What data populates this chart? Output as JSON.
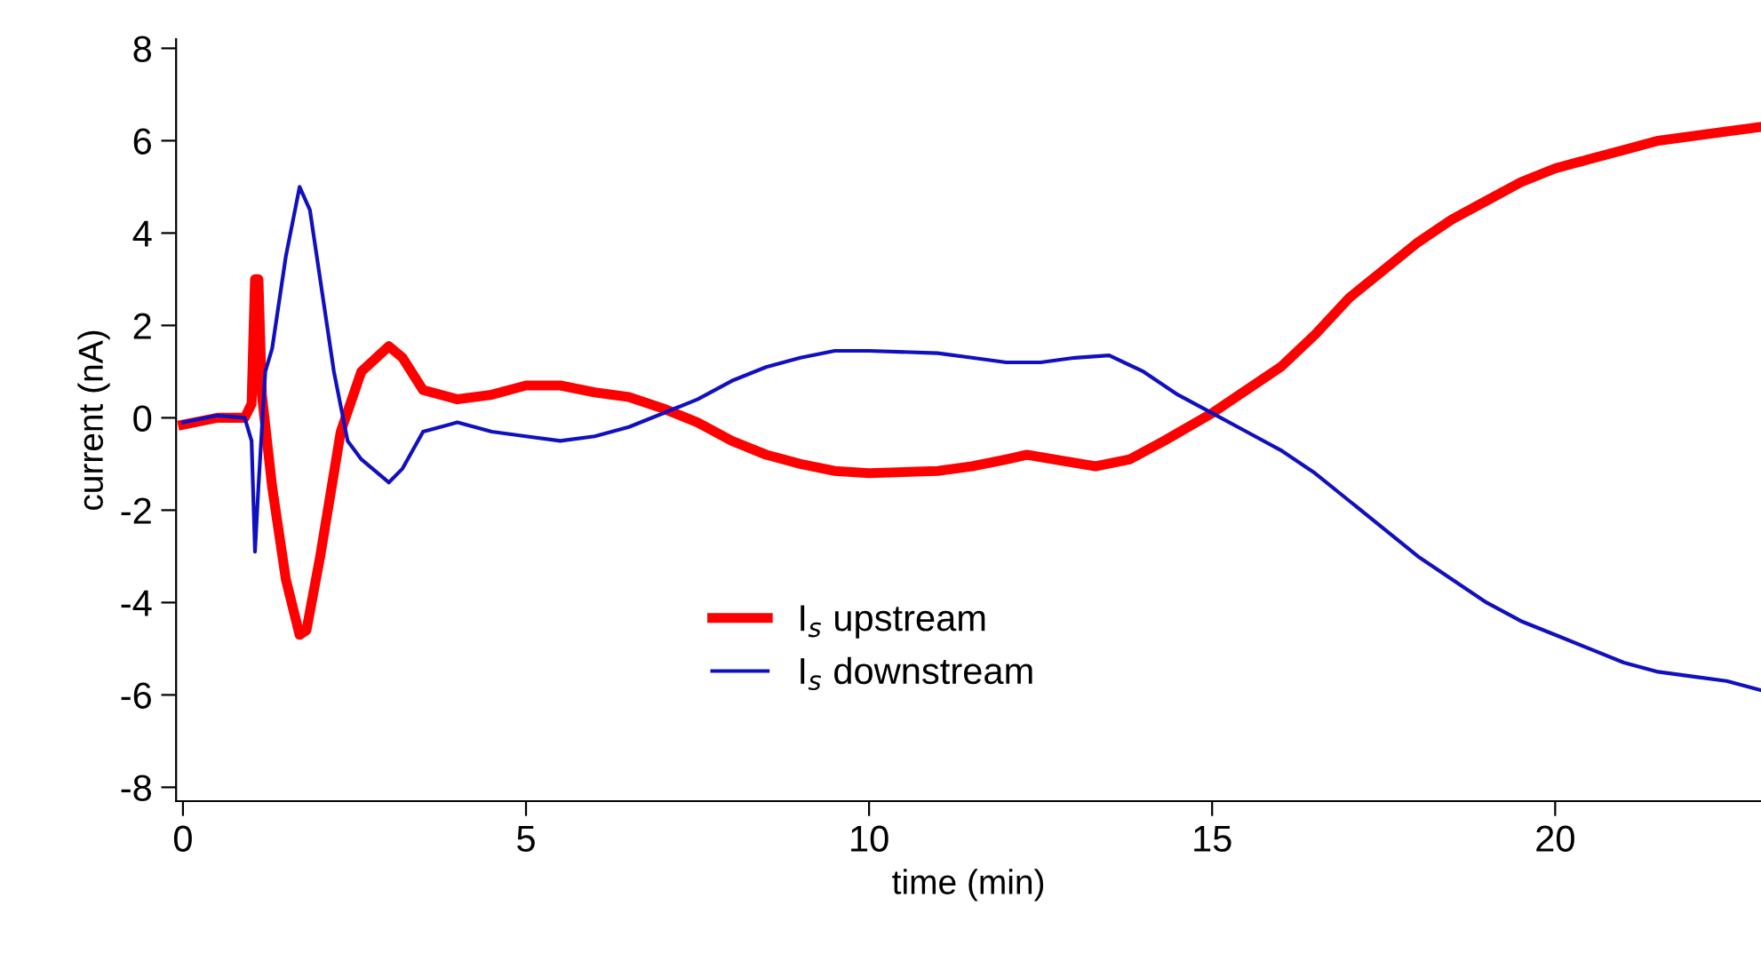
{
  "chart_data": {
    "type": "line",
    "xlabel": "time (min)",
    "ylabel": "current (nA)",
    "xlim": [
      -0.1,
      23
    ],
    "xticks": [
      0,
      5,
      10,
      15,
      20
    ],
    "ylim": [
      -8.3,
      8.2
    ],
    "yticks": [
      -8,
      -6,
      -4,
      -2,
      0,
      2,
      4,
      6,
      8
    ],
    "grid": false,
    "legend": "bottom",
    "line_style": "solid",
    "series": [
      {
        "name": "I$_{s}$ upstream",
        "color": "#ff0000",
        "x": [
          0,
          0.5,
          0.9,
          1.0,
          1.05,
          1.1,
          1.15,
          1.3,
          1.5,
          1.7,
          1.8,
          2.0,
          2.3,
          2.6,
          3.0,
          3.2,
          3.5,
          4.0,
          4.5,
          5.0,
          5.5,
          6.0,
          6.5,
          7.0,
          7.5,
          8.0,
          8.5,
          9,
          9.5,
          10,
          11,
          11.5,
          12,
          12.3,
          12.7,
          13.3,
          13.8,
          14.3,
          15,
          15.5,
          16,
          16.5,
          17,
          17.5,
          18,
          18.5,
          19,
          19.5,
          20,
          20.5,
          21,
          21.5,
          22,
          22.5,
          23
        ],
        "values": [
          -0.15,
          0.0,
          0.0,
          0.3,
          3.0,
          3.0,
          0.5,
          -1.5,
          -3.5,
          -4.7,
          -4.6,
          -3,
          -0.3,
          1.0,
          1.55,
          1.3,
          0.6,
          0.4,
          0.5,
          0.7,
          0.7,
          0.55,
          0.45,
          0.2,
          -0.1,
          -0.5,
          -0.8,
          -1.0,
          -1.15,
          -1.2,
          -1.15,
          -1.05,
          -0.9,
          -0.8,
          -0.9,
          -1.05,
          -0.9,
          -0.5,
          0.1,
          0.6,
          1.1,
          1.8,
          2.6,
          3.2,
          3.8,
          4.3,
          4.7,
          5.1,
          5.4,
          5.6,
          5.8,
          6.0,
          6.1,
          6.2,
          6.3
        ]
      },
      {
        "name": "I$_{s}$ downstream",
        "color": "#1010c0",
        "x": [
          0,
          0.5,
          0.9,
          1.0,
          1.05,
          1.1,
          1.2,
          1.3,
          1.5,
          1.7,
          1.85,
          2.0,
          2.2,
          2.4,
          2.6,
          3.0,
          3.2,
          3.5,
          4.0,
          4.5,
          5.0,
          5.5,
          6.0,
          6.5,
          7.0,
          7.5,
          8.0,
          8.5,
          9,
          9.5,
          10,
          11,
          11.5,
          12,
          12.5,
          13,
          13.5,
          14,
          14.5,
          15,
          15.5,
          16,
          16.5,
          17,
          17.5,
          18,
          18.5,
          19,
          19.5,
          20,
          20.5,
          21,
          21.5,
          22,
          22.5,
          23
        ],
        "values": [
          -0.1,
          0.05,
          0.0,
          -0.5,
          -2.9,
          -1.5,
          1.0,
          1.5,
          3.5,
          5.0,
          4.5,
          3,
          1.0,
          -0.5,
          -0.9,
          -1.4,
          -1.1,
          -0.3,
          -0.1,
          -0.3,
          -0.4,
          -0.5,
          -0.4,
          -0.2,
          0.1,
          0.4,
          0.8,
          1.1,
          1.3,
          1.45,
          1.45,
          1.4,
          1.3,
          1.2,
          1.2,
          1.3,
          1.35,
          1.0,
          0.5,
          0.1,
          -0.3,
          -0.7,
          -1.2,
          -1.8,
          -2.4,
          -3.0,
          -3.5,
          -4.0,
          -4.4,
          -4.7,
          -5.0,
          -5.3,
          -5.5,
          -5.6,
          -5.7,
          -5.9
        ]
      }
    ]
  }
}
